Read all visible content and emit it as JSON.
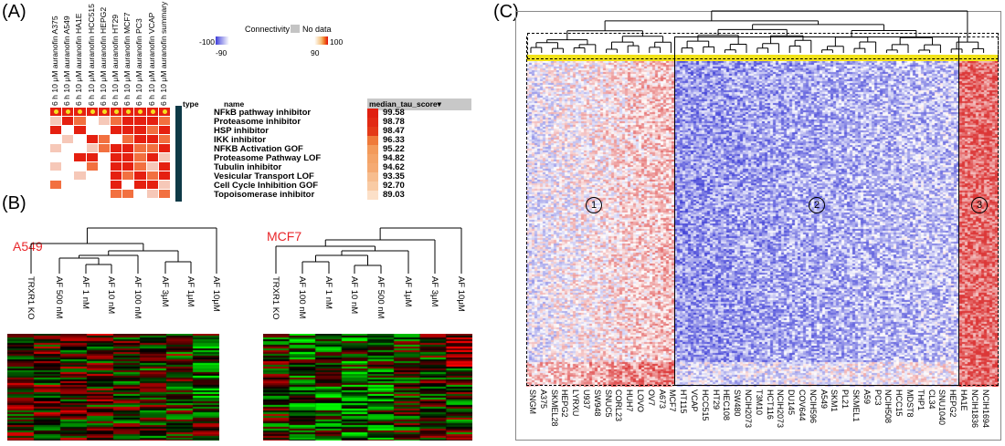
{
  "panels": {
    "a": "(A)",
    "b": "(B)",
    "c": "(C)"
  },
  "panelA": {
    "columns": [
      "6 h 10 μM auranofin A375",
      "6 h 10 μM auranofin A549",
      "6 h 10 μM auranofin HA1E",
      "6 h 10 μM auranofin HCC515",
      "6 h 10 μM auranofin HEPG2",
      "6 h 10 μM auranofin HT29",
      "6 h 10 μM auranofin MCF7",
      "6 h 10 μM auranofin PC3",
      "6 h 10 μM auranofin VCAP",
      "6 h 10 μM auranofin summary"
    ],
    "colorbar": {
      "title": "Connectivity",
      "nodata": "No data",
      "min": "-100",
      "max": "100",
      "low": "-90",
      "high": "90"
    },
    "table_headers": {
      "type": "type",
      "name": "name",
      "score": "median_tau_score▾"
    },
    "rows": [
      {
        "name": "NFkB pathway inhibitor",
        "score": "99.58"
      },
      {
        "name": "Proteasome inhibitor",
        "score": "98.78"
      },
      {
        "name": "HSP inhibitor",
        "score": "98.47"
      },
      {
        "name": "IKK inhibitor",
        "score": "96.33"
      },
      {
        "name": "NFKB Activation GOF",
        "score": "95.22"
      },
      {
        "name": "Proteasome Pathway LOF",
        "score": "94.82"
      },
      {
        "name": "Tubulin inhibitor",
        "score": "94.62"
      },
      {
        "name": "Vesicular Transport LOF",
        "score": "93.35"
      },
      {
        "name": "Cell Cycle Inhibition GOF",
        "score": "92.70"
      },
      {
        "name": "Topoisomerase inhibitor",
        "score": "89.03"
      }
    ],
    "score_colors": [
      "#e02010",
      "#e22a14",
      "#e43a18",
      "#ef7a3a",
      "#f39a5a",
      "#f4a468",
      "#f5aa72",
      "#f7bd8e",
      "#f9cba4",
      "#fce0c8"
    ],
    "grid": [
      [
        2,
        0,
        2,
        3,
        3,
        2,
        1,
        2,
        2,
        1
      ],
      [
        1,
        3,
        2,
        0,
        1,
        2,
        3,
        3,
        3,
        2
      ],
      [
        3,
        0,
        3,
        0,
        0,
        3,
        3,
        3,
        2,
        3
      ],
      [
        0,
        1,
        0,
        3,
        2,
        0,
        2,
        3,
        3,
        2
      ],
      [
        1,
        0,
        0,
        1,
        2,
        3,
        3,
        2,
        2,
        3
      ],
      [
        0,
        0,
        3,
        3,
        0,
        3,
        3,
        2,
        3,
        1
      ],
      [
        1,
        0,
        0,
        2,
        0,
        3,
        3,
        2,
        1,
        3
      ],
      [
        0,
        0,
        1,
        0,
        0,
        3,
        2,
        3,
        2,
        3
      ],
      [
        2,
        0,
        0,
        0,
        0,
        3,
        0,
        3,
        3,
        1
      ],
      [
        0,
        0,
        0,
        0,
        0,
        2,
        2,
        0,
        1,
        2
      ]
    ]
  },
  "panelB": {
    "a549": {
      "title": "A549",
      "leaves": [
        "TRXR1 KO",
        "AF 500 nM",
        "AF 1 nM",
        "AF 10 nM",
        "AF 100 nM",
        "AF 3μM",
        "AF 1μM",
        "AF 10μM"
      ]
    },
    "mcf7": {
      "title": "MCF7",
      "leaves": [
        "TRXR1 KO",
        "AF 100 nM",
        "AF 1 nM",
        "AF 10 nM",
        "AF 500 nM",
        "AF 1μM",
        "AF 3μM",
        "AF 10μM"
      ]
    }
  },
  "panelC": {
    "clusters": [
      "1",
      "2",
      "3"
    ],
    "cell_lines": [
      "SNGM",
      "A375",
      "SKMEL28",
      "HEPG2",
      "LYRXU",
      "U937",
      "SW948",
      "SNUC5",
      "CORL23",
      "HUH7",
      "LOVO",
      "OV7",
      "A673",
      "MCF7",
      "HT115",
      "VCAP",
      "HCC515",
      "HT29",
      "HEC108",
      "SW480",
      "NCIH2073",
      "T3M10",
      "HCT116",
      "NCIH2073",
      "DU145",
      "COV644",
      "NCIH596",
      "A549",
      "SKM1",
      "PL21",
      "SKMEL1",
      "A59",
      "PC3",
      "NCIH508",
      "HCC15",
      "MDST8",
      "THP1",
      "CL34",
      "SNU1040",
      "HEPG2",
      "HA1E",
      "NCIH1836",
      "NCIH1694"
    ]
  }
}
